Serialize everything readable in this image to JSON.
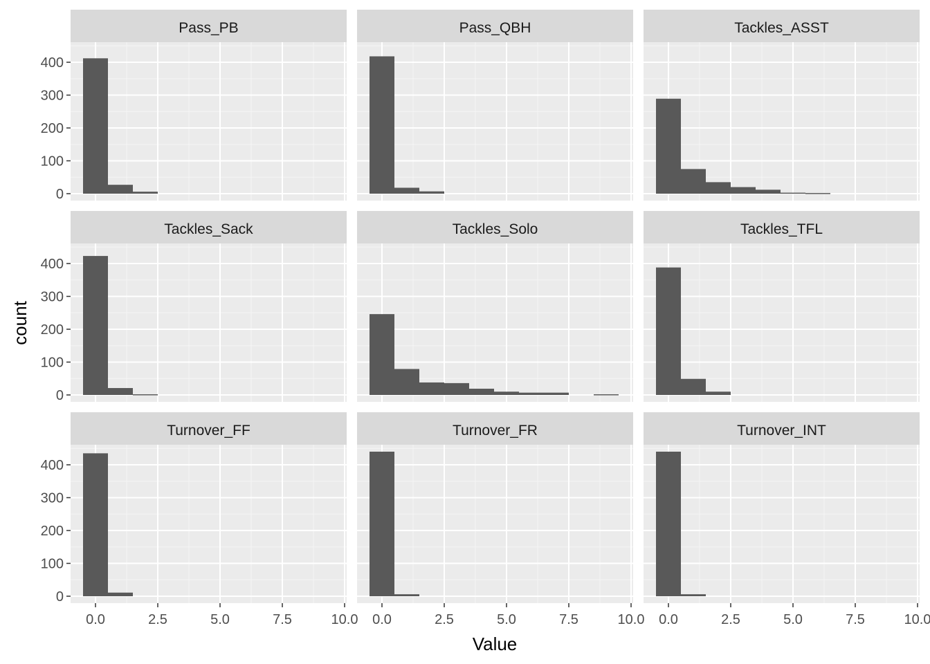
{
  "chart_data": {
    "type": "bar",
    "subtype": "faceted-histogram",
    "xlabel": "Value",
    "ylabel": "count",
    "xlim": [
      -1,
      10
    ],
    "ylim": [
      0,
      440
    ],
    "x_ticks": [
      0,
      2.5,
      5,
      7.5,
      10
    ],
    "x_tick_labels": [
      "0.0",
      "2.5",
      "5.0",
      "7.5",
      "10.0"
    ],
    "y_ticks": [
      0,
      100,
      200,
      300,
      400
    ],
    "y_tick_labels": [
      "0",
      "100",
      "200",
      "300",
      "400"
    ],
    "bin_width": 1,
    "bin_centers": [
      0,
      1,
      2,
      3,
      4,
      5,
      6,
      7,
      8,
      9
    ],
    "grid": true,
    "colors": {
      "bar": "#595959",
      "panel": "#ebebeb",
      "strip": "#d9d9d9",
      "grid": "#ffffff"
    },
    "facets": [
      {
        "name": "Pass_PB",
        "counts": [
          412,
          27,
          6,
          0,
          0,
          0,
          0,
          0,
          0,
          0
        ]
      },
      {
        "name": "Pass_QBH",
        "counts": [
          418,
          18,
          7,
          0,
          0,
          0,
          0,
          0,
          0,
          0
        ]
      },
      {
        "name": "Tackles_ASST",
        "counts": [
          289,
          75,
          35,
          20,
          12,
          3,
          2,
          0,
          0,
          0
        ]
      },
      {
        "name": "Tackles_Sack",
        "counts": [
          423,
          21,
          2,
          0,
          0,
          0,
          0,
          0,
          0,
          0
        ]
      },
      {
        "name": "Tackles_Solo",
        "counts": [
          246,
          79,
          38,
          36,
          19,
          10,
          7,
          7,
          0,
          2
        ]
      },
      {
        "name": "Tackles_TFL",
        "counts": [
          388,
          49,
          10,
          0,
          0,
          0,
          0,
          0,
          0,
          0
        ]
      },
      {
        "name": "Turnover_FF",
        "counts": [
          435,
          11,
          0,
          0,
          0,
          0,
          0,
          0,
          0,
          0
        ]
      },
      {
        "name": "Turnover_FR",
        "counts": [
          440,
          6,
          0,
          0,
          0,
          0,
          0,
          0,
          0,
          0
        ]
      },
      {
        "name": "Turnover_INT",
        "counts": [
          440,
          6,
          0,
          0,
          0,
          0,
          0,
          0,
          0,
          0
        ]
      }
    ]
  }
}
